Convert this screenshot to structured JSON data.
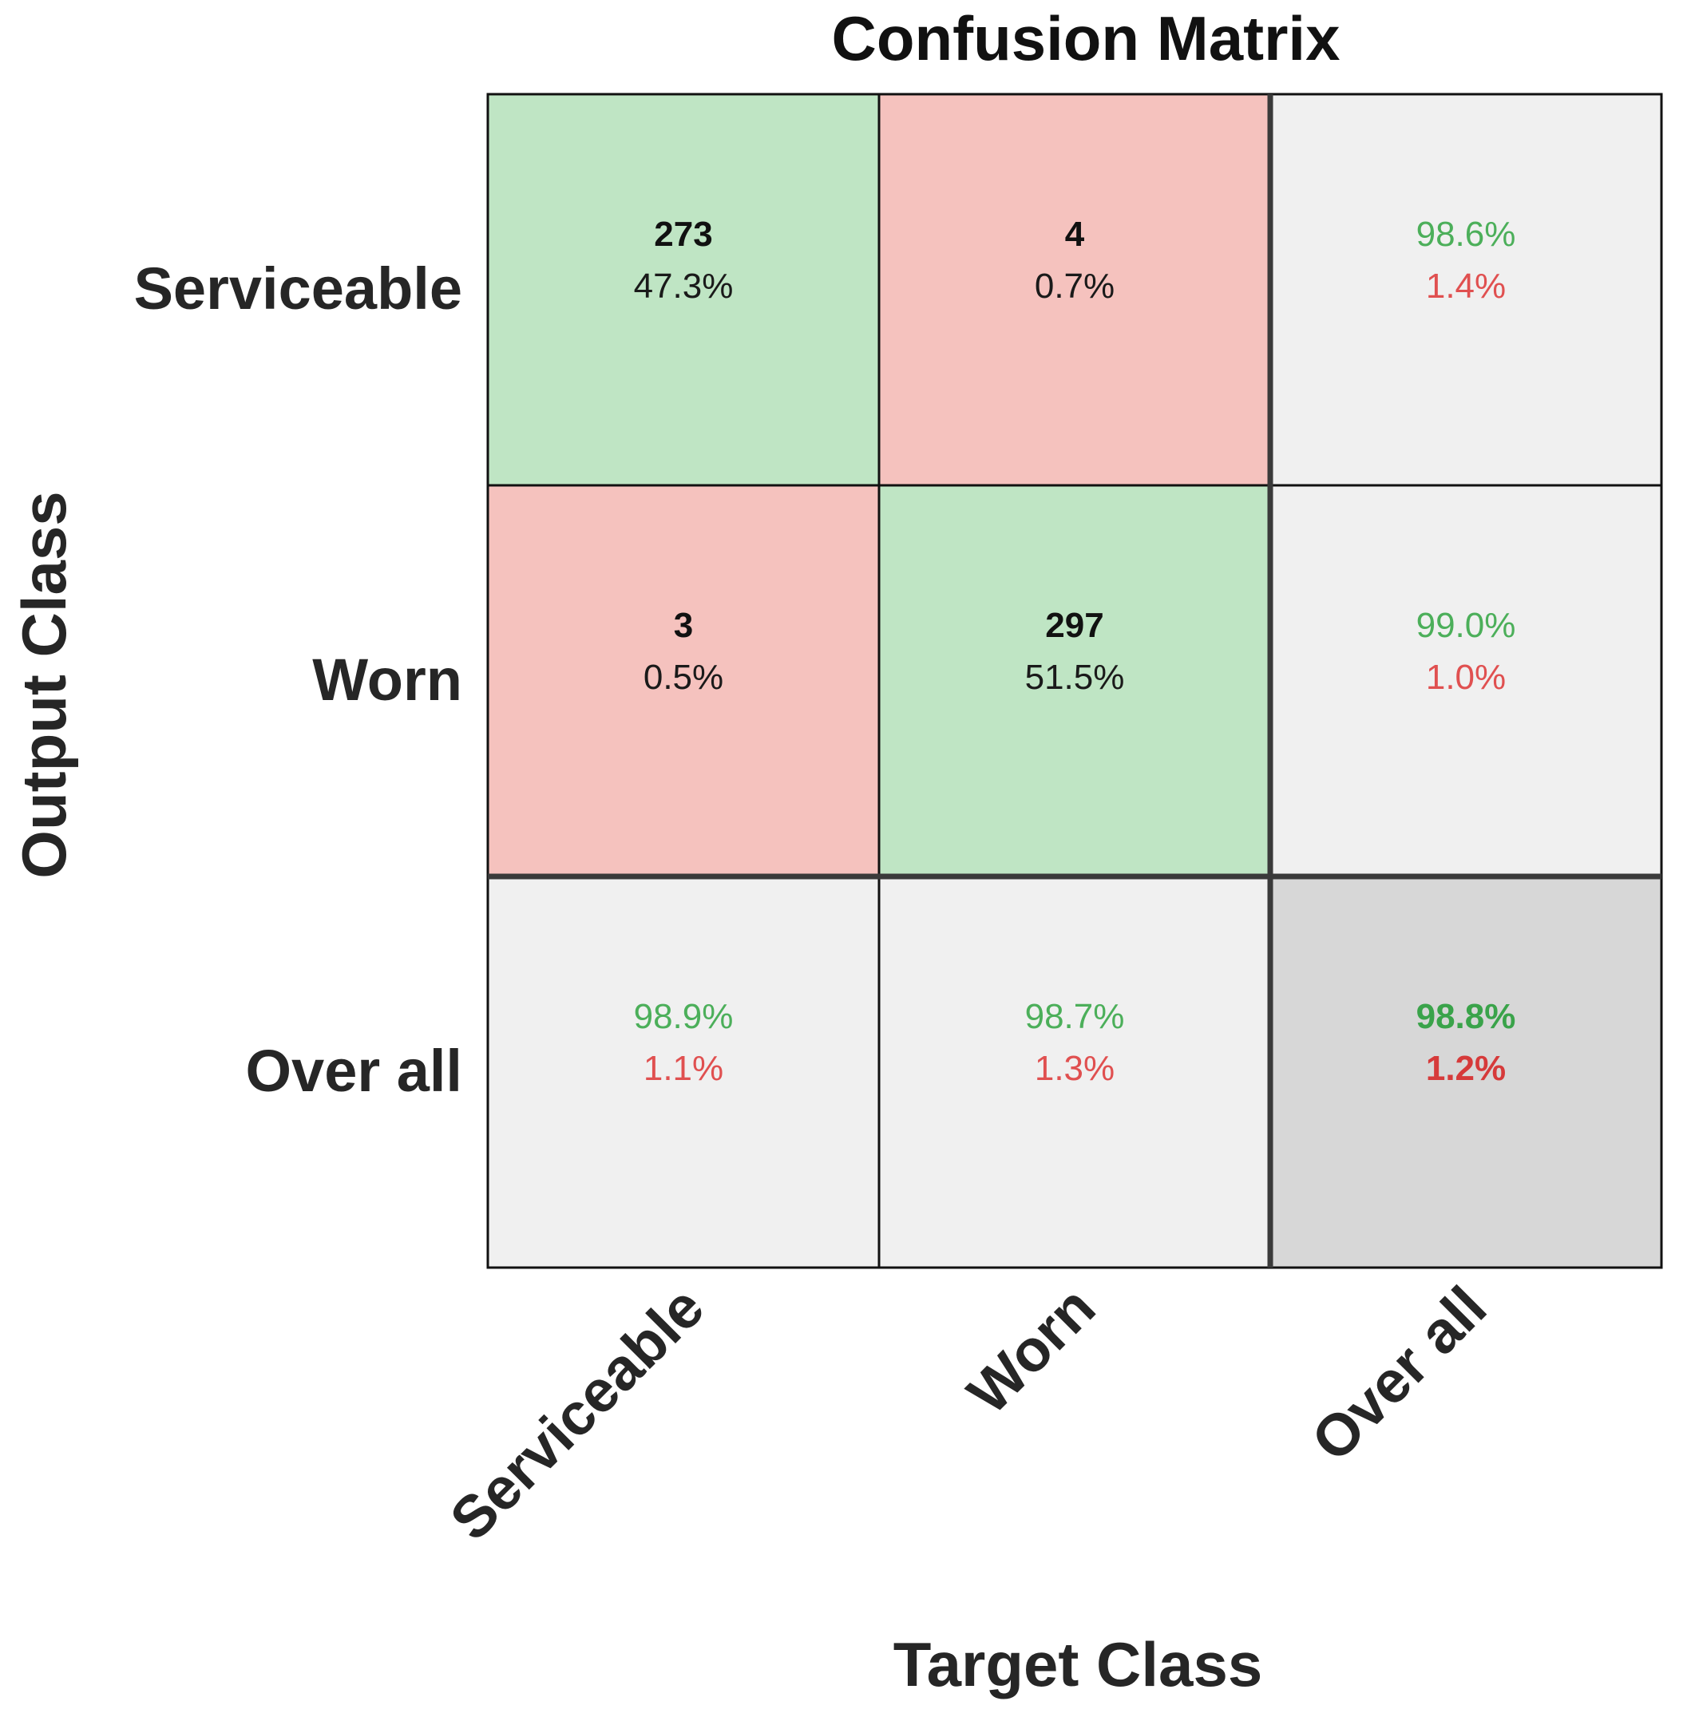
{
  "chart_data": {
    "type": "heatmap",
    "title": "Confusion Matrix",
    "xlabel": "Target Class",
    "ylabel": "Output Class",
    "target_classes": [
      "Serviceable",
      "Worn"
    ],
    "output_classes": [
      "Serviceable",
      "Worn"
    ],
    "summary_label": "Over all",
    "x_tick_labels": [
      "Serviceable",
      "Worn",
      "Over all"
    ],
    "y_tick_labels": [
      "Serviceable",
      "Worn",
      "Over all"
    ],
    "counts": [
      [
        273,
        4
      ],
      [
        3,
        297
      ]
    ],
    "count_labels": [
      [
        "273",
        "4"
      ],
      [
        "3",
        "297"
      ]
    ],
    "percent_labels": [
      [
        "47.3%",
        "0.7%"
      ],
      [
        "0.5%",
        "51.5%"
      ]
    ],
    "row_summary": [
      {
        "correct": "98.6%",
        "error": "1.4%"
      },
      {
        "correct": "99.0%",
        "error": "1.0%"
      }
    ],
    "column_summary": [
      {
        "correct": "98.9%",
        "error": "1.1%"
      },
      {
        "correct": "98.7%",
        "error": "1.3%"
      }
    ],
    "overall": {
      "correct": "98.8%",
      "error": "1.2%"
    },
    "colors": {
      "correct_cell": "#bfe5c4",
      "error_cell": "#f5c2be",
      "summary_cell": "#f0f0f0",
      "overall_cell": "#d7d7d7",
      "correct_text": "#4caf5a",
      "error_text": "#e05050",
      "overall_correct_text": "#3aa34a",
      "overall_error_text": "#d63a3a",
      "grid_line": "#111111",
      "summary_divider": "#3a3a3a"
    }
  }
}
